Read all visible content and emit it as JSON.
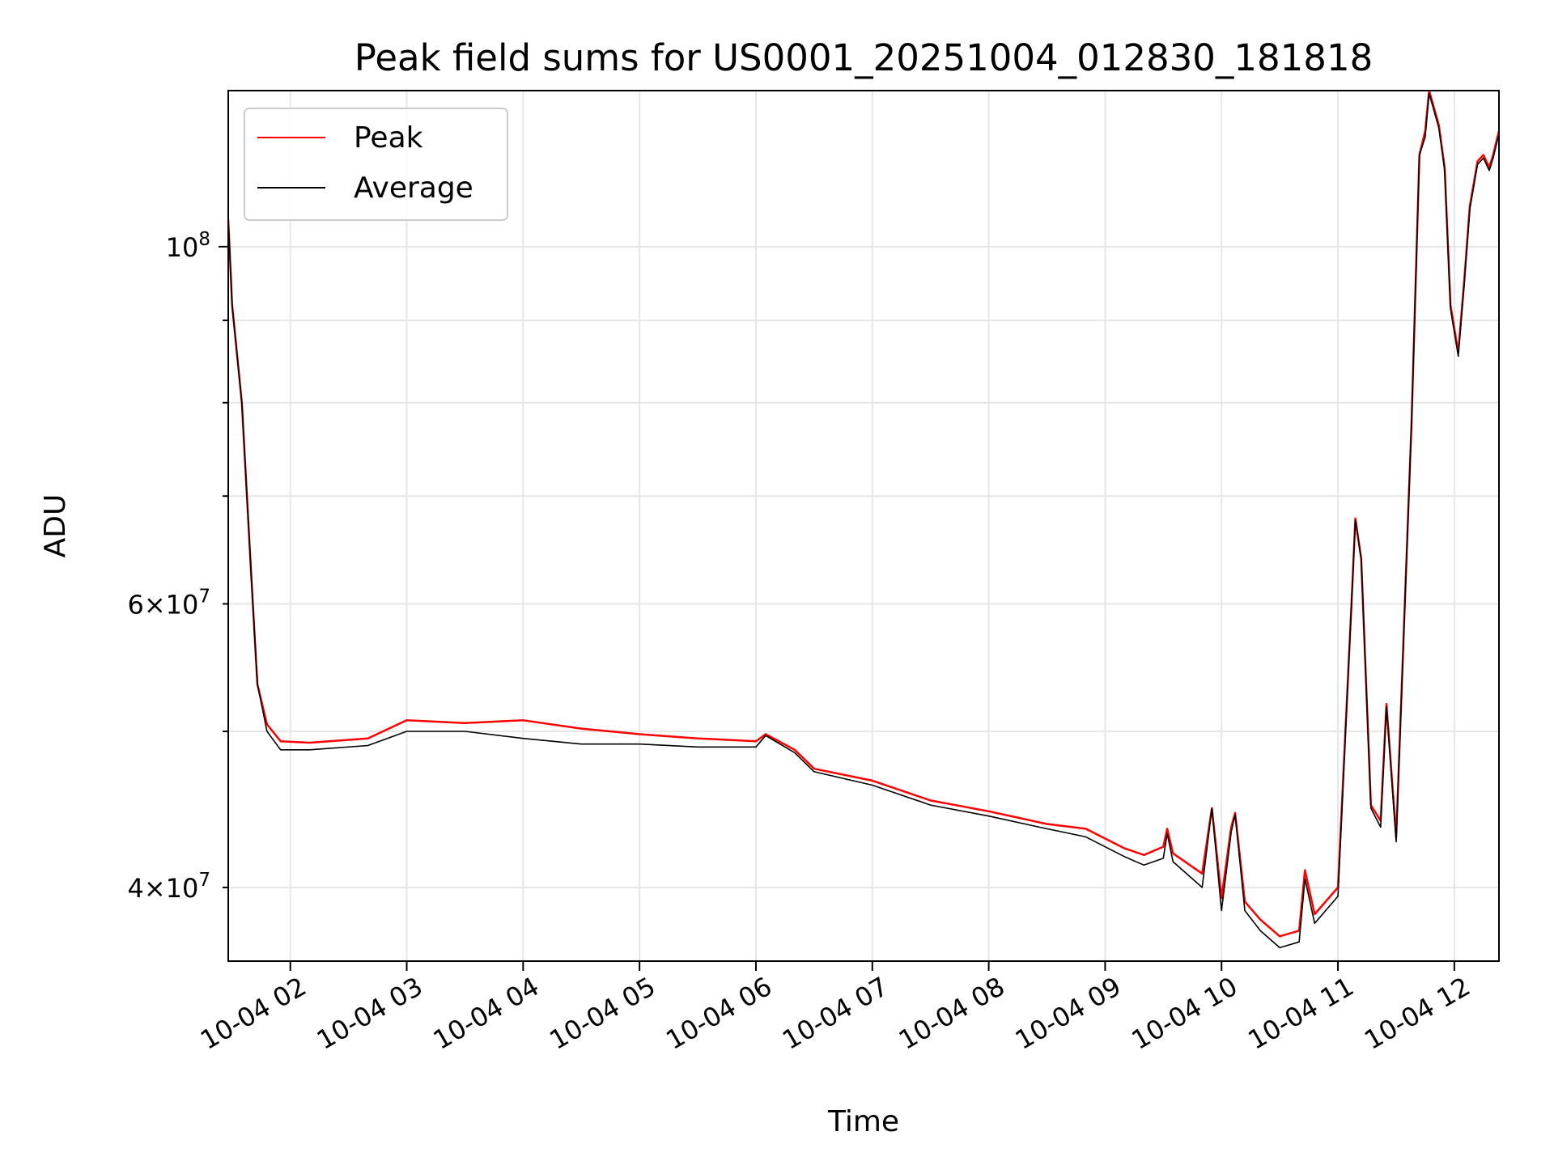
{
  "chart_data": {
    "type": "line",
    "title": "Peak field sums for US0001_20251004_012830_181818",
    "xlabel": "Time",
    "ylabel": "ADU",
    "yscale": "log",
    "ylim": [
      36000000,
      125000000
    ],
    "xlim": [
      "2025-10-04 01:28",
      "2025-10-04 12:23"
    ],
    "grid": true,
    "legend_position": "top-left",
    "x_ticks": [
      {
        "value": "2025-10-04 02:00",
        "label": "10-04 02"
      },
      {
        "value": "2025-10-04 03:00",
        "label": "10-04 03"
      },
      {
        "value": "2025-10-04 04:00",
        "label": "10-04 04"
      },
      {
        "value": "2025-10-04 05:00",
        "label": "10-04 05"
      },
      {
        "value": "2025-10-04 06:00",
        "label": "10-04 06"
      },
      {
        "value": "2025-10-04 07:00",
        "label": "10-04 07"
      },
      {
        "value": "2025-10-04 08:00",
        "label": "10-04 08"
      },
      {
        "value": "2025-10-04 09:00",
        "label": "10-04 09"
      },
      {
        "value": "2025-10-04 10:00",
        "label": "10-04 10"
      },
      {
        "value": "2025-10-04 11:00",
        "label": "10-04 11"
      },
      {
        "value": "2025-10-04 12:00",
        "label": "10-04 12"
      }
    ],
    "y_major_ticks": [
      {
        "value": 100000000,
        "base": "10",
        "exp": "8"
      }
    ],
    "y_minor_ticks": [
      {
        "value": 40000000,
        "mant": "4",
        "base": "10",
        "exp": "7"
      },
      {
        "value": 60000000,
        "mant": "6",
        "base": "10",
        "exp": "7"
      }
    ],
    "y_minor_unlabeled": [
      50000000,
      70000000,
      80000000,
      90000000
    ],
    "series": [
      {
        "name": "Peak",
        "color": "#ff0000",
        "points": [
          [
            "2025-10-04 01:28",
            104000000
          ],
          [
            "2025-10-04 01:30",
            92000000
          ],
          [
            "2025-10-04 01:35",
            80000000
          ],
          [
            "2025-10-04 01:40",
            62000000
          ],
          [
            "2025-10-04 01:43",
            53500000
          ],
          [
            "2025-10-04 01:48",
            50500000
          ],
          [
            "2025-10-04 01:55",
            49300000
          ],
          [
            "2025-10-04 02:10",
            49200000
          ],
          [
            "2025-10-04 02:40",
            49500000
          ],
          [
            "2025-10-04 03:00",
            50800000
          ],
          [
            "2025-10-04 03:30",
            50600000
          ],
          [
            "2025-10-04 04:00",
            50800000
          ],
          [
            "2025-10-04 04:30",
            50200000
          ],
          [
            "2025-10-04 05:00",
            49800000
          ],
          [
            "2025-10-04 05:30",
            49500000
          ],
          [
            "2025-10-04 06:00",
            49300000
          ],
          [
            "2025-10-04 06:05",
            49800000
          ],
          [
            "2025-10-04 06:20",
            48700000
          ],
          [
            "2025-10-04 06:30",
            47400000
          ],
          [
            "2025-10-04 07:00",
            46600000
          ],
          [
            "2025-10-04 07:30",
            45300000
          ],
          [
            "2025-10-04 08:00",
            44600000
          ],
          [
            "2025-10-04 08:30",
            43800000
          ],
          [
            "2025-10-04 08:50",
            43500000
          ],
          [
            "2025-10-04 09:10",
            42300000
          ],
          [
            "2025-10-04 09:20",
            41900000
          ],
          [
            "2025-10-04 09:30",
            42400000
          ],
          [
            "2025-10-04 09:32",
            43500000
          ],
          [
            "2025-10-04 09:35",
            42000000
          ],
          [
            "2025-10-04 09:50",
            40800000
          ],
          [
            "2025-10-04 09:55",
            44800000
          ],
          [
            "2025-10-04 10:00",
            39400000
          ],
          [
            "2025-10-04 10:05",
            43600000
          ],
          [
            "2025-10-04 10:07",
            44500000
          ],
          [
            "2025-10-04 10:12",
            39200000
          ],
          [
            "2025-10-04 10:20",
            38200000
          ],
          [
            "2025-10-04 10:30",
            37300000
          ],
          [
            "2025-10-04 10:40",
            37600000
          ],
          [
            "2025-10-04 10:43",
            41000000
          ],
          [
            "2025-10-04 10:48",
            38500000
          ],
          [
            "2025-10-04 11:00",
            40000000
          ],
          [
            "2025-10-04 11:07",
            60000000
          ],
          [
            "2025-10-04 11:09",
            67800000
          ],
          [
            "2025-10-04 11:12",
            64000000
          ],
          [
            "2025-10-04 11:17",
            45000000
          ],
          [
            "2025-10-04 11:22",
            44000000
          ],
          [
            "2025-10-04 11:25",
            52000000
          ],
          [
            "2025-10-04 11:30",
            43000000
          ],
          [
            "2025-10-04 11:38",
            78000000
          ],
          [
            "2025-10-04 11:42",
            114000000
          ],
          [
            "2025-10-04 11:45",
            118000000
          ],
          [
            "2025-10-04 11:47",
            125000000
          ],
          [
            "2025-10-04 11:52",
            119000000
          ],
          [
            "2025-10-04 11:55",
            112000000
          ],
          [
            "2025-10-04 11:58",
            92000000
          ],
          [
            "2025-10-04 12:02",
            86000000
          ],
          [
            "2025-10-04 12:05",
            95000000
          ],
          [
            "2025-10-04 12:08",
            106000000
          ],
          [
            "2025-10-04 12:12",
            113000000
          ],
          [
            "2025-10-04 12:15",
            114000000
          ],
          [
            "2025-10-04 12:18",
            112000000
          ],
          [
            "2025-10-04 12:20",
            114000000
          ],
          [
            "2025-10-04 12:23",
            118000000
          ]
        ]
      },
      {
        "name": "Average",
        "color": "#000000",
        "points": [
          [
            "2025-10-04 01:28",
            104000000
          ],
          [
            "2025-10-04 01:30",
            92000000
          ],
          [
            "2025-10-04 01:35",
            80000000
          ],
          [
            "2025-10-04 01:40",
            62000000
          ],
          [
            "2025-10-04 01:43",
            53500000
          ],
          [
            "2025-10-04 01:48",
            50000000
          ],
          [
            "2025-10-04 01:55",
            48700000
          ],
          [
            "2025-10-04 02:10",
            48700000
          ],
          [
            "2025-10-04 02:40",
            49000000
          ],
          [
            "2025-10-04 03:00",
            50000000
          ],
          [
            "2025-10-04 03:30",
            50000000
          ],
          [
            "2025-10-04 04:00",
            49500000
          ],
          [
            "2025-10-04 04:30",
            49100000
          ],
          [
            "2025-10-04 05:00",
            49100000
          ],
          [
            "2025-10-04 05:30",
            48900000
          ],
          [
            "2025-10-04 06:00",
            48900000
          ],
          [
            "2025-10-04 06:05",
            49700000
          ],
          [
            "2025-10-04 06:20",
            48500000
          ],
          [
            "2025-10-04 06:30",
            47200000
          ],
          [
            "2025-10-04 07:00",
            46300000
          ],
          [
            "2025-10-04 07:30",
            45000000
          ],
          [
            "2025-10-04 08:00",
            44300000
          ],
          [
            "2025-10-04 08:30",
            43500000
          ],
          [
            "2025-10-04 08:50",
            43000000
          ],
          [
            "2025-10-04 09:10",
            41800000
          ],
          [
            "2025-10-04 09:20",
            41300000
          ],
          [
            "2025-10-04 09:30",
            41700000
          ],
          [
            "2025-10-04 09:32",
            43200000
          ],
          [
            "2025-10-04 09:35",
            41500000
          ],
          [
            "2025-10-04 09:50",
            40000000
          ],
          [
            "2025-10-04 09:55",
            44800000
          ],
          [
            "2025-10-04 10:00",
            38700000
          ],
          [
            "2025-10-04 10:05",
            43300000
          ],
          [
            "2025-10-04 10:07",
            44400000
          ],
          [
            "2025-10-04 10:12",
            38700000
          ],
          [
            "2025-10-04 10:20",
            37600000
          ],
          [
            "2025-10-04 10:30",
            36700000
          ],
          [
            "2025-10-04 10:40",
            37000000
          ],
          [
            "2025-10-04 10:43",
            40500000
          ],
          [
            "2025-10-04 10:48",
            38000000
          ],
          [
            "2025-10-04 11:00",
            39500000
          ],
          [
            "2025-10-04 11:07",
            60000000
          ],
          [
            "2025-10-04 11:09",
            67600000
          ],
          [
            "2025-10-04 11:12",
            64000000
          ],
          [
            "2025-10-04 11:17",
            44800000
          ],
          [
            "2025-10-04 11:22",
            43600000
          ],
          [
            "2025-10-04 11:25",
            51800000
          ],
          [
            "2025-10-04 11:30",
            42700000
          ],
          [
            "2025-10-04 11:38",
            78000000
          ],
          [
            "2025-10-04 11:42",
            114000000
          ],
          [
            "2025-10-04 11:45",
            117000000
          ],
          [
            "2025-10-04 11:47",
            124500000
          ],
          [
            "2025-10-04 11:52",
            118500000
          ],
          [
            "2025-10-04 11:55",
            111500000
          ],
          [
            "2025-10-04 11:58",
            91500000
          ],
          [
            "2025-10-04 12:02",
            85500000
          ],
          [
            "2025-10-04 12:05",
            94500000
          ],
          [
            "2025-10-04 12:08",
            105500000
          ],
          [
            "2025-10-04 12:12",
            112500000
          ],
          [
            "2025-10-04 12:15",
            113500000
          ],
          [
            "2025-10-04 12:18",
            111500000
          ],
          [
            "2025-10-04 12:20",
            113500000
          ],
          [
            "2025-10-04 12:23",
            117500000
          ]
        ]
      }
    ]
  }
}
